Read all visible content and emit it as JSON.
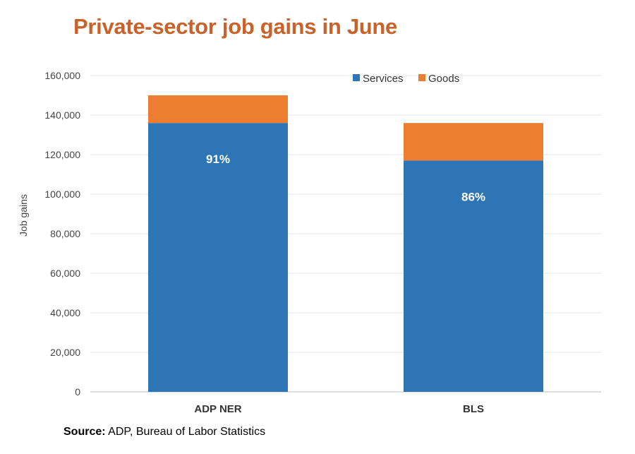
{
  "chart_data": {
    "type": "bar",
    "stacked": true,
    "title": "Private-sector job gains in June",
    "ylabel": "Job gains",
    "xlabel": "",
    "ylim": [
      0,
      160000
    ],
    "yticks": [
      0,
      20000,
      40000,
      60000,
      80000,
      100000,
      120000,
      140000,
      160000
    ],
    "ytick_labels": [
      "0",
      "20,000",
      "40,000",
      "60,000",
      "80,000",
      "100,000",
      "120,000",
      "140,000",
      "160,000"
    ],
    "categories": [
      "ADP NER",
      "BLS"
    ],
    "series": [
      {
        "name": "Services",
        "color": "#2E75B6",
        "values": [
          136000,
          117000
        ],
        "labels": [
          "91%",
          "86%"
        ]
      },
      {
        "name": "Goods",
        "color": "#ED7D31",
        "values": [
          14000,
          19000
        ]
      }
    ],
    "grid": true,
    "legend_position": "top-right"
  },
  "footer": {
    "source_label": "Source:",
    "source_text": " ADP, Bureau of Labor Statistics"
  }
}
